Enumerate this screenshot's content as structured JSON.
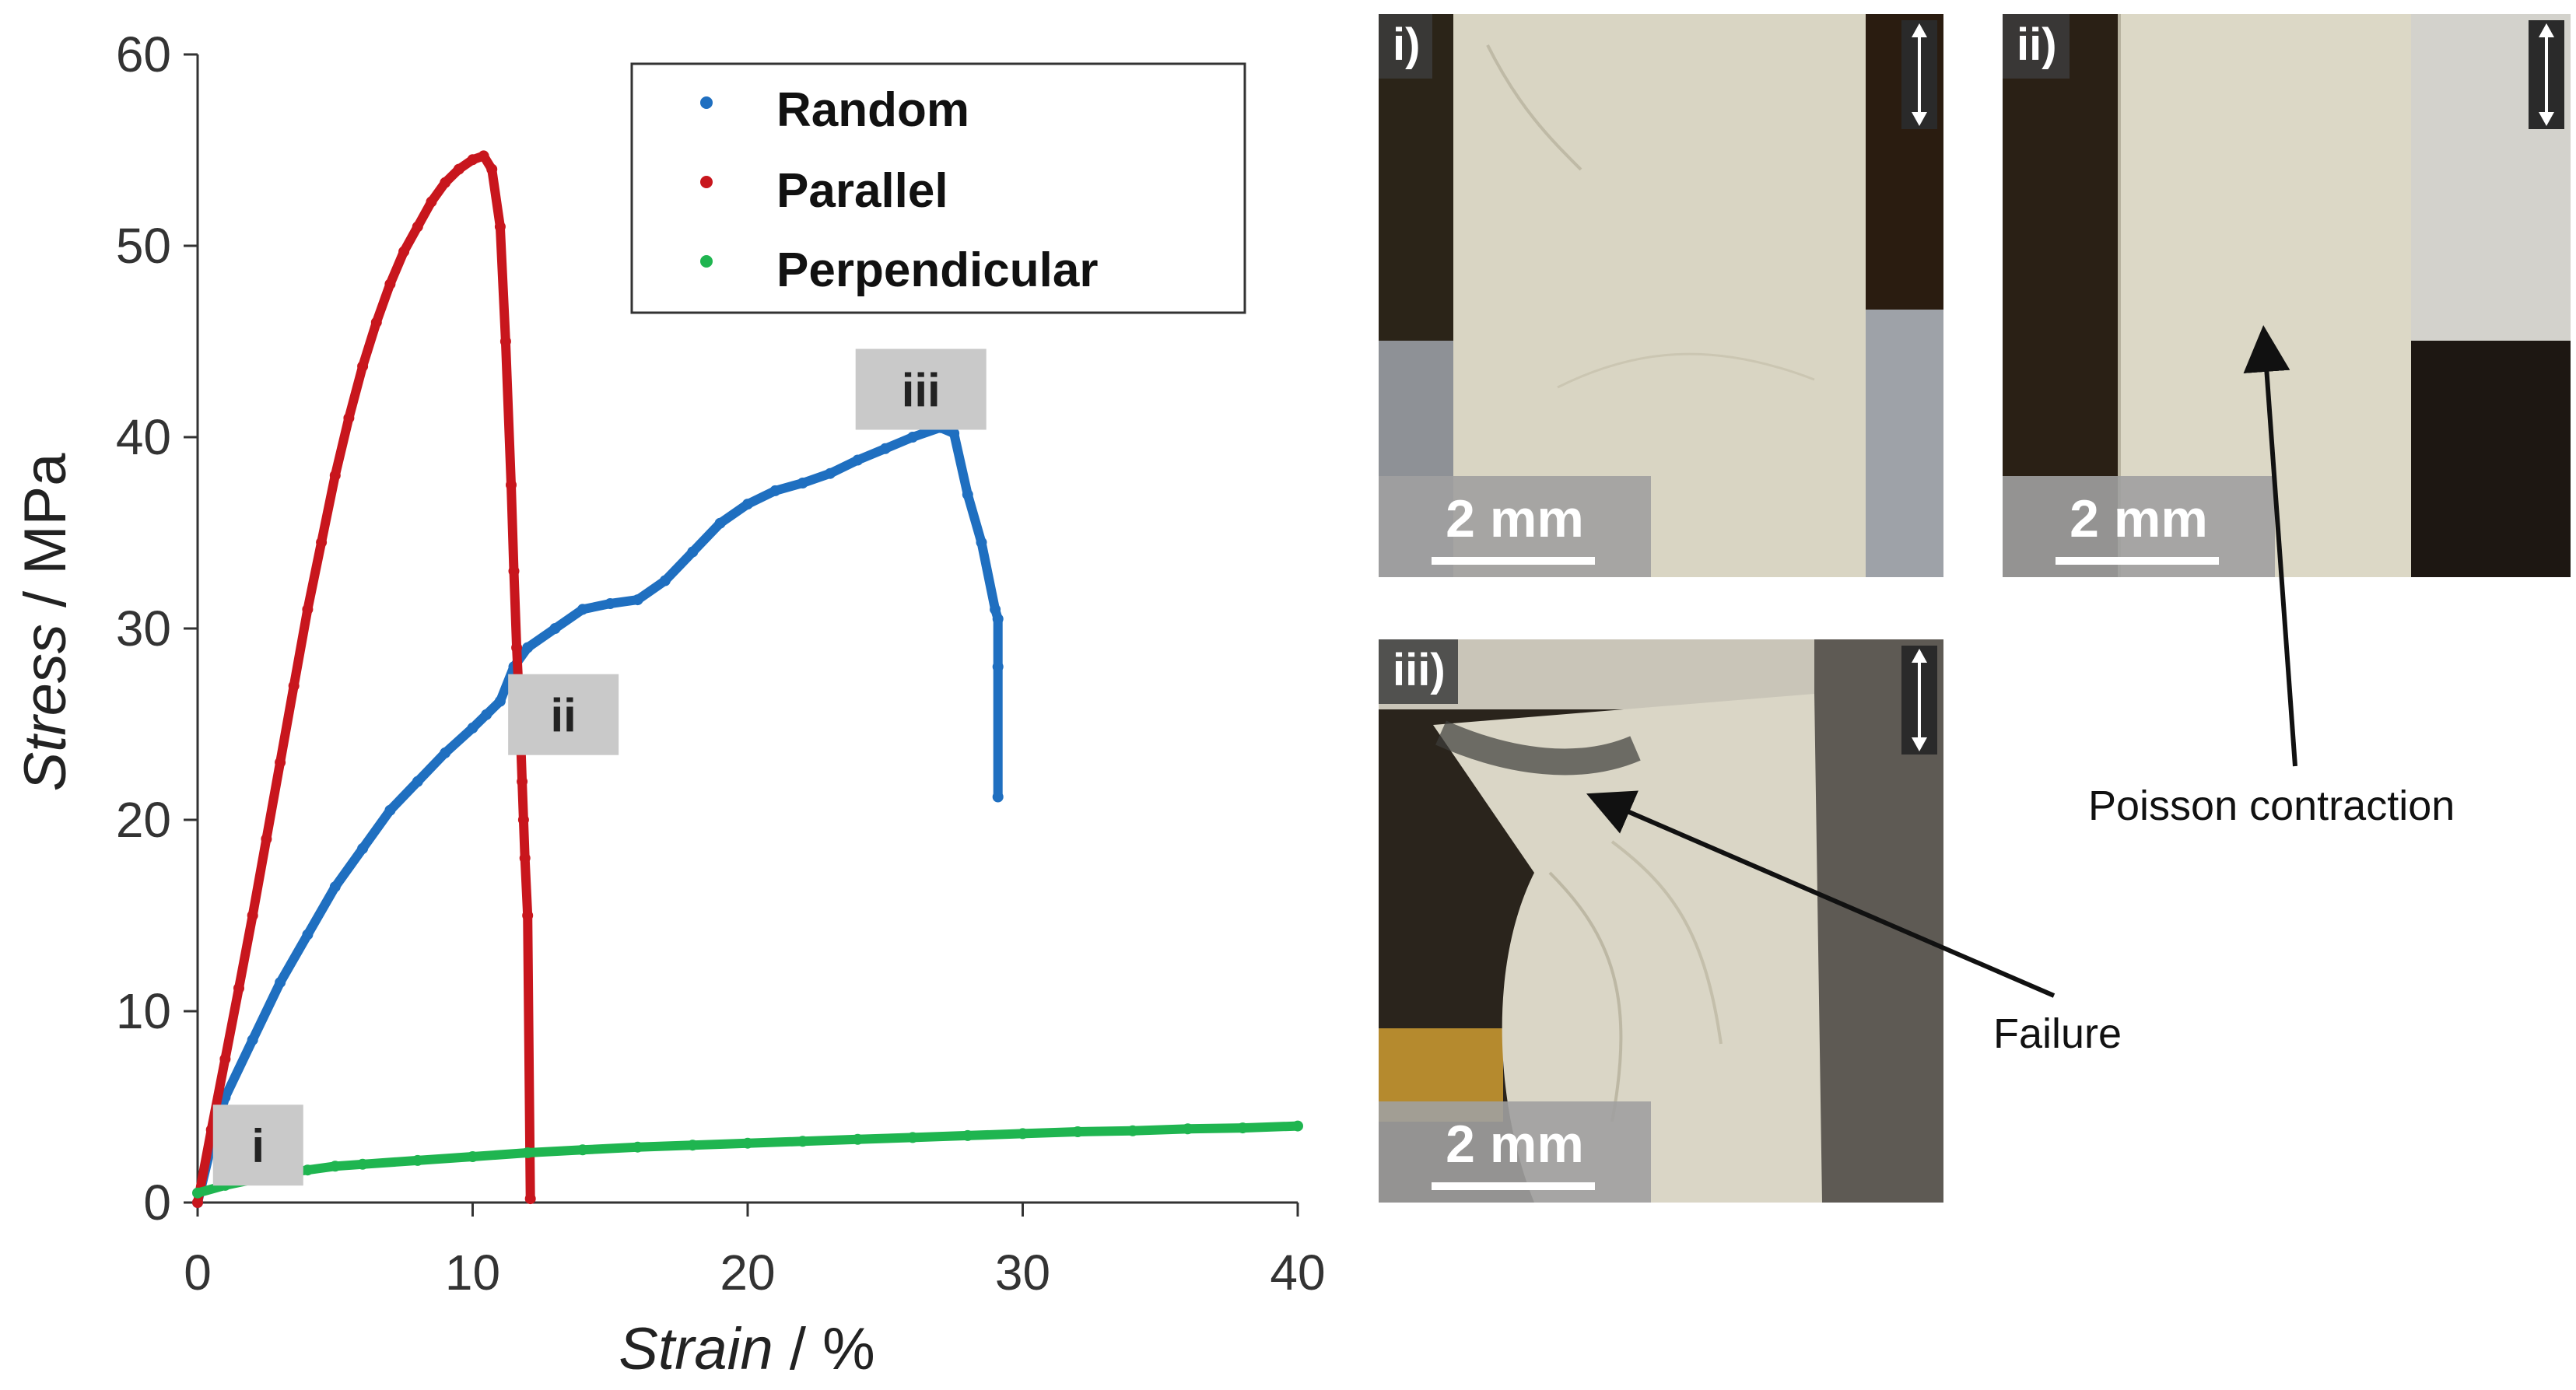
{
  "chart_data": {
    "type": "scatter",
    "xlabel_italic": "Strain",
    "xlabel_unit": " / %",
    "ylabel_italic": "Stress",
    "ylabel_unit": " / MPa",
    "xlim": [
      0,
      40
    ],
    "ylim": [
      0,
      60
    ],
    "x_ticks": [
      "0",
      "10",
      "20",
      "30",
      "40"
    ],
    "y_ticks": [
      "0",
      "10",
      "20",
      "30",
      "40",
      "50",
      "60"
    ],
    "grid": false,
    "legend_position": "top-right",
    "series": [
      {
        "name": "Random",
        "color": "#1f6fc0",
        "x": [
          0,
          0.5,
          1,
          2,
          3,
          4,
          5,
          6,
          7,
          8,
          9,
          10,
          10.5,
          11,
          11.5,
          12,
          13,
          14,
          15,
          16,
          17,
          18,
          19,
          20,
          21,
          22,
          23,
          24,
          25,
          26,
          27,
          27.5,
          28,
          28.5,
          29,
          29.1,
          29.1,
          29.1
        ],
        "y": [
          0,
          3,
          5.5,
          8.5,
          11.5,
          14,
          16.5,
          18.5,
          20.5,
          22,
          23.5,
          24.8,
          25.5,
          26.2,
          28,
          29,
          30,
          31,
          31.3,
          31.5,
          32.5,
          34,
          35.5,
          36.5,
          37.2,
          37.6,
          38.1,
          38.8,
          39.4,
          40,
          40.5,
          40.2,
          37,
          34.5,
          31,
          30.5,
          28,
          21.2
        ]
      },
      {
        "name": "Parallel",
        "color": "#c8161d",
        "x": [
          0,
          0.5,
          1,
          1.5,
          2,
          2.5,
          3,
          3.5,
          4,
          4.5,
          5,
          5.5,
          6,
          6.5,
          7,
          7.5,
          8,
          8.5,
          9,
          9.5,
          10,
          10.4,
          10.7,
          11,
          11.2,
          11.4,
          11.5,
          11.6,
          11.7,
          11.8,
          11.85,
          11.9,
          12,
          12.1
        ],
        "y": [
          0,
          3.8,
          7.5,
          11.2,
          15,
          19,
          23,
          27,
          31,
          34.5,
          38,
          41,
          43.7,
          46,
          48,
          49.7,
          51,
          52.3,
          53.3,
          54,
          54.5,
          54.7,
          54,
          51,
          45,
          37.5,
          33,
          29,
          26,
          22,
          20,
          18,
          15,
          0.2
        ]
      },
      {
        "name": "Perpendicular",
        "color": "#1fb550",
        "x": [
          0,
          1,
          2,
          3,
          4,
          5,
          6,
          8,
          10,
          12,
          14,
          16,
          18,
          20,
          22,
          24,
          26,
          28,
          30,
          32,
          34,
          36,
          38,
          40
        ],
        "y": [
          0.5,
          0.9,
          1.2,
          1.5,
          1.7,
          1.9,
          2.0,
          2.2,
          2.4,
          2.6,
          2.75,
          2.9,
          3.0,
          3.1,
          3.2,
          3.3,
          3.4,
          3.5,
          3.6,
          3.7,
          3.75,
          3.85,
          3.9,
          4.0
        ]
      }
    ],
    "point_labels": [
      {
        "text": "i",
        "x": 2.2,
        "y": 3.0
      },
      {
        "text": "ii",
        "x": 13.3,
        "y": 25.5
      },
      {
        "text": "iii",
        "x": 26.3,
        "y": 42.5
      }
    ]
  },
  "photos": {
    "panel_i": {
      "tag": "i)",
      "scale": "2 mm"
    },
    "panel_ii": {
      "tag": "ii)",
      "scale": "2 mm"
    },
    "panel_iii": {
      "tag": "iii)",
      "scale": "2 mm"
    }
  },
  "annotations": {
    "poisson": "Poisson contraction",
    "failure": "Failure"
  }
}
